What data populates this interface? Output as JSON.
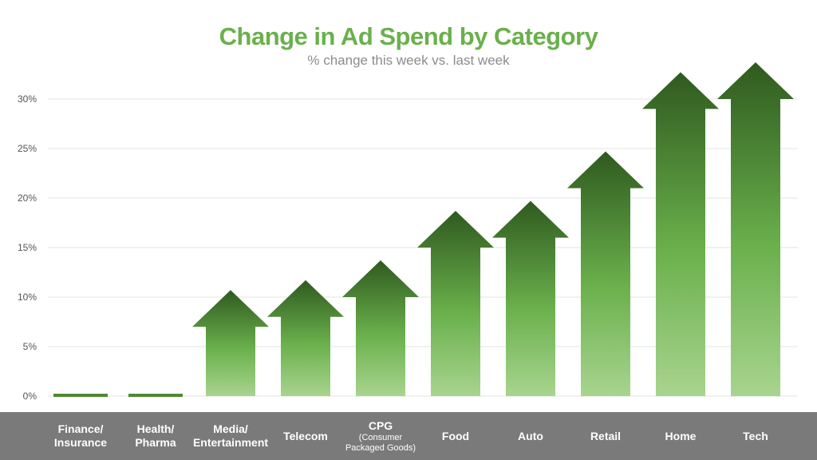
{
  "chart_data": {
    "type": "bar",
    "title": "Change in Ad Spend by Category",
    "subtitle": "% change this week vs. last week",
    "categories": [
      {
        "label": "Finance/\nInsurance",
        "sub": ""
      },
      {
        "label": "Health/\nPharma",
        "sub": ""
      },
      {
        "label": "Media/\nEntertainment",
        "sub": ""
      },
      {
        "label": "Telecom",
        "sub": ""
      },
      {
        "label": "CPG",
        "sub": "(Consumer\nPackaged Goods)"
      },
      {
        "label": "Food",
        "sub": ""
      },
      {
        "label": "Auto",
        "sub": ""
      },
      {
        "label": "Retail",
        "sub": ""
      },
      {
        "label": "Home",
        "sub": ""
      },
      {
        "label": "Tech",
        "sub": ""
      }
    ],
    "values": [
      0,
      0,
      7,
      8,
      10,
      15,
      16,
      21,
      29,
      30
    ],
    "ylim": [
      0,
      30
    ],
    "yticks": [
      "0%",
      "5%",
      "10%",
      "15%",
      "20%",
      "25%",
      "30%"
    ],
    "ytick_values": [
      0,
      5,
      10,
      15,
      20,
      25,
      30
    ],
    "grid": true,
    "mark": "arrow",
    "colors": {
      "title": "#6ab04c",
      "arrow_dark": "#2f5a1f",
      "arrow_mid": "#6ab04c",
      "arrow_light": "#a8d48f",
      "category_band": "#7a7a7a"
    }
  }
}
